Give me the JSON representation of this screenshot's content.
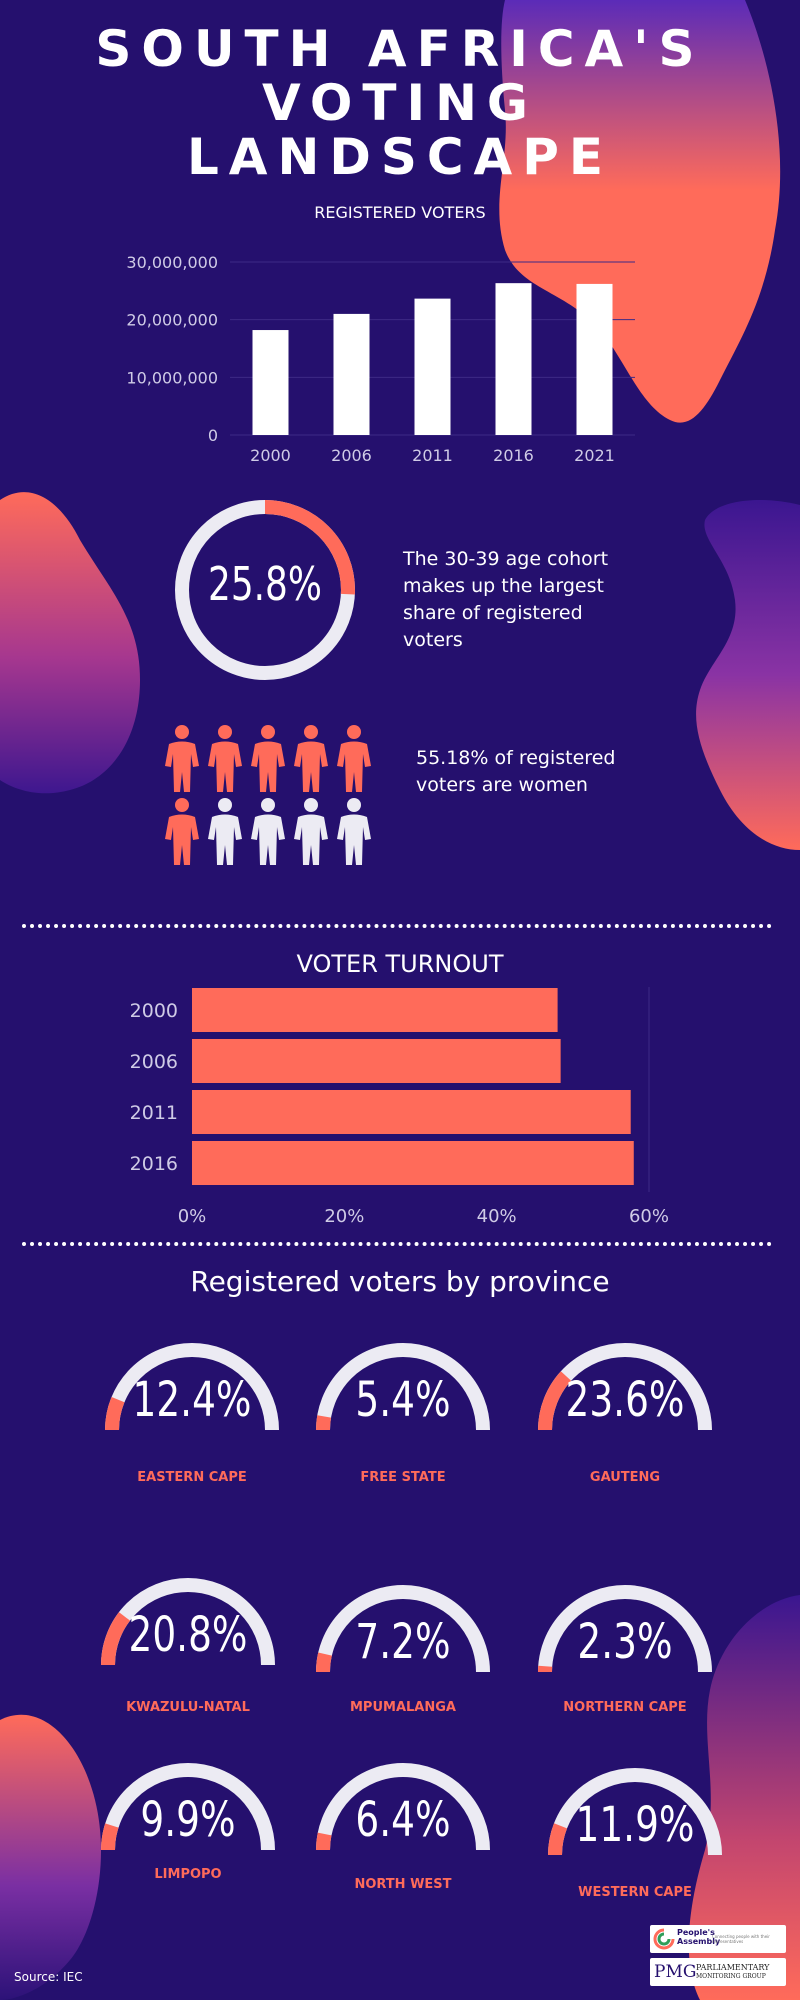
{
  "header": {
    "title_lines": [
      "SOUTH AFRICA'S",
      "VOTING",
      "LANDSCAPE"
    ]
  },
  "registered_voters": {
    "title": "REGISTERED VOTERS"
  },
  "cohort": {
    "value_text": "25.8%",
    "value": 25.8,
    "text": "The 30-39 age cohort makes up the largest share of registered voters"
  },
  "women": {
    "text": "55.18% of registered voters are women",
    "highlighted_count": 6,
    "total_count": 10
  },
  "turnout": {
    "title": "VOTER TURNOUT"
  },
  "provinces": {
    "title": "Registered voters by province",
    "items": [
      {
        "name": "EASTERN CAPE",
        "value_text": "12.4%",
        "value": 12.4
      },
      {
        "name": "FREE STATE",
        "value_text": "5.4%",
        "value": 5.4
      },
      {
        "name": "GAUTENG",
        "value_text": "23.6%",
        "value": 23.6
      },
      {
        "name": "KWAZULU-NATAL",
        "value_text": "20.8%",
        "value": 20.8
      },
      {
        "name": "MPUMALANGA",
        "value_text": "7.2%",
        "value": 7.2
      },
      {
        "name": "NORTHERN CAPE",
        "value_text": "2.3%",
        "value": 2.3
      },
      {
        "name": "LIMPOPO",
        "value_text": "9.9%",
        "value": 9.9
      },
      {
        "name": "NORTH WEST",
        "value_text": "6.4%",
        "value": 6.4
      },
      {
        "name": "WESTERN CAPE",
        "value_text": "11.9%",
        "value": 11.9
      }
    ]
  },
  "footer": {
    "source": "Source: IEC",
    "logo1_name": "People's Assembly",
    "logo1_tagline": "Connecting people with their representatives",
    "logo2_mark": "PMG",
    "logo2_line1": "PARLIAMENTARY",
    "logo2_line2": "MONITORING GROUP"
  },
  "colors": {
    "background": "#25106e",
    "accent": "#ff6b5a",
    "track": "#ecebf3",
    "purple_blob": "#4a1fa8"
  },
  "chart_data": [
    {
      "type": "bar",
      "title": "REGISTERED VOTERS",
      "categories": [
        "2000",
        "2006",
        "2011",
        "2016",
        "2021"
      ],
      "values": [
        18200000,
        21000000,
        23650000,
        26330000,
        26200000
      ],
      "ylim": [
        0,
        30000000
      ],
      "yticks": [
        0,
        10000000,
        20000000,
        30000000
      ],
      "ytick_labels": [
        "0",
        "10,000,000",
        "20,000,000",
        "30,000,000"
      ],
      "grid": true,
      "bar_color": "#ffffff"
    },
    {
      "type": "bar",
      "orientation": "horizontal",
      "title": "VOTER TURNOUT",
      "categories": [
        "2000",
        "2006",
        "2011",
        "2016"
      ],
      "values": [
        48,
        48.4,
        57.6,
        58
      ],
      "xlim": [
        0,
        60
      ],
      "xticks": [
        0,
        20,
        40,
        60
      ],
      "xtick_labels": [
        "0%",
        "20%",
        "40%",
        "60%"
      ],
      "bar_color": "#ff6b5a"
    }
  ]
}
